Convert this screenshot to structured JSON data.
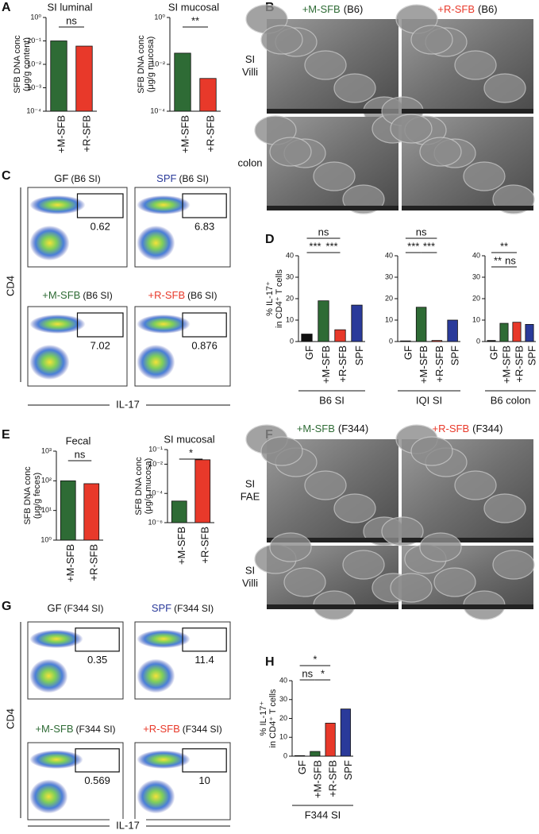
{
  "panel_labels": [
    "A",
    "B",
    "C",
    "D",
    "E",
    "F",
    "G",
    "H"
  ],
  "chart_data": [
    {
      "type": "bar",
      "title": "SI luminal",
      "ylabel": [
        "SFB DNA conc",
        "(μg/g content)"
      ],
      "log": true,
      "ylim": [
        0.0001,
        1
      ],
      "yticks": [
        {
          "value": 1,
          "label": "10⁰"
        },
        {
          "value": 0.1,
          "label": "10⁻¹"
        },
        {
          "value": 0.01,
          "label": "10⁻²"
        },
        {
          "value": 0.001,
          "label": "10⁻³"
        },
        {
          "value": 0.0001,
          "label": "10⁻⁴"
        }
      ],
      "categories": [
        "+M-SFB",
        "+R-SFB"
      ],
      "colors": [
        "#2e6b35",
        "#e8392a"
      ],
      "values": [
        0.1,
        0.06
      ],
      "significance": [
        {
          "label": "ns",
          "between": [
            0,
            1
          ]
        }
      ]
    },
    {
      "type": "bar",
      "title": "SI mucosal",
      "ylabel": [
        "SFB DNA conc",
        "(μg/g mucosa)"
      ],
      "log": true,
      "ylim": [
        0.0001,
        1
      ],
      "yticks": [
        {
          "value": 1,
          "label": "10⁰"
        },
        {
          "value": 0.01,
          "label": "10⁻²"
        },
        {
          "value": 0.0001,
          "label": "10⁻⁴"
        }
      ],
      "categories": [
        "+M-SFB",
        "+R-SFB"
      ],
      "colors": [
        "#2e6b35",
        "#e8392a"
      ],
      "values": [
        0.03,
        0.0025
      ],
      "significance": [
        {
          "label": "**",
          "between": [
            0,
            1
          ]
        }
      ]
    },
    {
      "type": "bar",
      "ylabel": [
        "% IL-17⁺",
        "in CD4⁺ T cells"
      ],
      "xlabel": "B6 SI",
      "ylim": [
        0,
        40
      ],
      "yticks": [
        0,
        10,
        20,
        30,
        40
      ],
      "categories": [
        "GF",
        "+M-SFB",
        "+R-SFB",
        "SPF"
      ],
      "colors": [
        "#111111",
        "#2e6b35",
        "#e8392a",
        "#2a3a9a"
      ],
      "values": [
        3.5,
        19,
        5.5,
        17
      ],
      "significance": [
        {
          "label": "***",
          "between": [
            0,
            1
          ]
        },
        {
          "label": "***",
          "between": [
            1,
            2
          ]
        },
        {
          "label": "ns",
          "between": [
            0,
            2
          ]
        }
      ]
    },
    {
      "type": "bar",
      "xlabel": "IQI SI",
      "ylim": [
        0,
        40
      ],
      "yticks": [
        0,
        10,
        20,
        30,
        40
      ],
      "categories": [
        "GF",
        "+M-SFB",
        "+R-SFB",
        "SPF"
      ],
      "colors": [
        "#111111",
        "#2e6b35",
        "#e8392a",
        "#2a3a9a"
      ],
      "values": [
        0.3,
        16,
        0.5,
        10
      ],
      "significance": [
        {
          "label": "***",
          "between": [
            0,
            1
          ]
        },
        {
          "label": "***",
          "between": [
            1,
            2
          ]
        },
        {
          "label": "ns",
          "between": [
            0,
            2
          ]
        }
      ]
    },
    {
      "type": "bar",
      "xlabel": "B6 colon",
      "ylim": [
        0,
        40
      ],
      "yticks": [
        0,
        10,
        20,
        30,
        40
      ],
      "categories": [
        "GF",
        "+M-SFB",
        "+R-SFB",
        "SPF"
      ],
      "colors": [
        "#111111",
        "#2e6b35",
        "#e8392a",
        "#2a3a9a"
      ],
      "values": [
        0.5,
        8.5,
        9,
        8
      ],
      "significance": [
        {
          "label": "**",
          "between": [
            0,
            1
          ]
        },
        {
          "label": "ns",
          "between": [
            1,
            2
          ]
        },
        {
          "label": "**",
          "between": [
            0,
            2
          ]
        }
      ]
    },
    {
      "type": "bar",
      "title": "Fecal",
      "ylabel": [
        "SFB DNA conc",
        "(μg/g feces)"
      ],
      "log": true,
      "ylim": [
        1,
        1000
      ],
      "yticks": [
        {
          "value": 1000,
          "label": "10³"
        },
        {
          "value": 100,
          "label": "10²"
        },
        {
          "value": 10,
          "label": "10¹"
        },
        {
          "value": 1,
          "label": "10⁰"
        }
      ],
      "categories": [
        "+M-SFB",
        "+R-SFB"
      ],
      "colors": [
        "#2e6b35",
        "#e8392a"
      ],
      "values": [
        100,
        80
      ],
      "significance": [
        {
          "label": "ns",
          "between": [
            0,
            1
          ]
        }
      ]
    },
    {
      "type": "bar",
      "title": "SI mucosal",
      "ylabel": [
        "SFB DNA conc",
        "(μg/g mucosa)"
      ],
      "log": true,
      "ylim": [
        1e-06,
        0.1
      ],
      "yticks": [
        {
          "value": 0.1,
          "label": "10⁻¹"
        },
        {
          "value": 0.01,
          "label": "10⁻²"
        },
        {
          "value": 0.0001,
          "label": "10⁻⁴"
        },
        {
          "value": 1e-06,
          "label": "10⁻⁶"
        }
      ],
      "categories": [
        "+M-SFB",
        "+R-SFB"
      ],
      "colors": [
        "#2e6b35",
        "#e8392a"
      ],
      "values": [
        3e-05,
        0.02
      ],
      "significance": [
        {
          "label": "*",
          "between": [
            0,
            1
          ]
        }
      ]
    },
    {
      "type": "bar",
      "ylabel": [
        "% IL-17⁺",
        "in CD4⁺ T cells"
      ],
      "xlabel": "F344 SI",
      "ylim": [
        0,
        40
      ],
      "yticks": [
        0,
        10,
        20,
        30,
        40
      ],
      "categories": [
        "GF",
        "+M-SFB",
        "+R-SFB",
        "SPF"
      ],
      "colors": [
        "#111111",
        "#2e6b35",
        "#e8392a",
        "#2a3a9a"
      ],
      "values": [
        0.3,
        2.5,
        17.5,
        25
      ],
      "significance": [
        {
          "label": "ns",
          "between": [
            0,
            1
          ]
        },
        {
          "label": "*",
          "between": [
            1,
            2
          ]
        },
        {
          "label": "*",
          "between": [
            0,
            2
          ]
        }
      ]
    }
  ],
  "micrographs": [
    {
      "columns": [
        {
          "label": "+M-SFB",
          "detail": "(B6)",
          "color": "#2e6b35"
        },
        {
          "label": "+R-SFB",
          "detail": "(B6)",
          "color": "#e8392a"
        }
      ],
      "rows": [
        [
          "SI",
          "Villi"
        ],
        [
          "colon"
        ]
      ]
    },
    {
      "columns": [
        {
          "label": "+M-SFB",
          "detail": "(F344)",
          "color": "#2e6b35"
        },
        {
          "label": "+R-SFB",
          "detail": "(F344)",
          "color": "#e8392a"
        }
      ],
      "rows": [
        [
          "SI",
          "FAE"
        ],
        [
          "SI",
          "Villi"
        ]
      ]
    }
  ],
  "flow": [
    {
      "y_axis": "CD4",
      "x_axis": "IL-17",
      "plots": [
        {
          "label": "GF",
          "detail": "(B6 SI)",
          "color": "#111111",
          "gate": 0.62
        },
        {
          "label": "SPF",
          "detail": "(B6 SI)",
          "color": "#2a3a9a",
          "gate": 6.83
        },
        {
          "label": "+M-SFB",
          "detail": "(B6 SI)",
          "color": "#2e6b35",
          "gate": 7.02
        },
        {
          "label": "+R-SFB",
          "detail": "(B6 SI)",
          "color": "#e8392a",
          "gate": 0.876
        }
      ]
    },
    {
      "y_axis": "CD4",
      "x_axis": "IL-17",
      "plots": [
        {
          "label": "GF",
          "detail": "(F344 SI)",
          "color": "#111111",
          "gate": 0.35
        },
        {
          "label": "SPF",
          "detail": "(F344 SI)",
          "color": "#2a3a9a",
          "gate": 11.4
        },
        {
          "label": "+M-SFB",
          "detail": "(F344 SI)",
          "color": "#2e6b35",
          "gate": 0.569
        },
        {
          "label": "+R-SFB",
          "detail": "(F344 SI)",
          "color": "#e8392a",
          "gate": 10
        }
      ]
    }
  ]
}
